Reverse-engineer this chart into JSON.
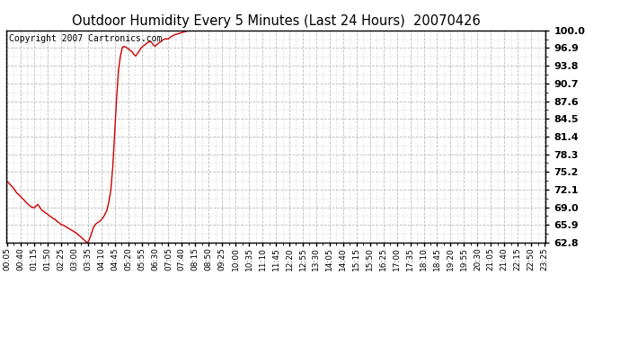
{
  "title": "Outdoor Humidity Every 5 Minutes (Last 24 Hours)  20070426",
  "copyright_text": "Copyright 2007 Cartronics.com",
  "line_color": "#cc0000",
  "bg_color": "#ffffff",
  "plot_bg_color": "#ffffff",
  "grid_color": "#bbbbbb",
  "ylim": [
    62.8,
    100.0
  ],
  "yticks": [
    62.8,
    65.9,
    69.0,
    72.1,
    75.2,
    78.3,
    81.4,
    84.5,
    87.6,
    90.7,
    93.8,
    96.9,
    100.0
  ],
  "x_labels": [
    "00:05",
    "00:40",
    "01:15",
    "01:50",
    "02:25",
    "03:00",
    "03:35",
    "04:10",
    "04:45",
    "05:20",
    "05:55",
    "06:30",
    "07:05",
    "07:40",
    "08:15",
    "08:50",
    "09:25",
    "10:00",
    "10:35",
    "11:10",
    "11:45",
    "12:20",
    "12:55",
    "13:30",
    "14:05",
    "14:40",
    "15:15",
    "15:50",
    "16:25",
    "17:00",
    "17:35",
    "18:10",
    "18:45",
    "19:20",
    "19:55",
    "20:30",
    "21:05",
    "21:40",
    "22:15",
    "22:50",
    "23:25"
  ],
  "humidity_values": [
    73.5,
    73.2,
    72.8,
    72.5,
    72.0,
    71.5,
    71.2,
    70.9,
    70.5,
    70.2,
    69.8,
    69.5,
    69.2,
    69.0,
    68.9,
    69.2,
    69.5,
    69.0,
    68.5,
    68.3,
    68.0,
    67.8,
    67.5,
    67.3,
    67.0,
    66.9,
    66.5,
    66.3,
    66.0,
    65.9,
    65.7,
    65.5,
    65.3,
    65.1,
    64.9,
    64.7,
    64.5,
    64.2,
    63.9,
    63.6,
    63.3,
    63.0,
    62.8,
    63.5,
    64.5,
    65.5,
    66.0,
    66.3,
    66.5,
    66.8,
    67.2,
    67.8,
    68.5,
    70.0,
    72.0,
    76.0,
    82.0,
    88.0,
    93.0,
    95.5,
    97.0,
    97.2,
    97.0,
    96.8,
    96.5,
    96.3,
    95.8,
    95.5,
    96.0,
    96.5,
    97.0,
    97.3,
    97.5,
    97.8,
    98.0,
    98.0,
    97.5,
    97.2,
    97.5,
    97.8,
    98.0,
    98.3,
    98.5,
    98.5,
    98.5,
    98.8,
    99.0,
    99.2,
    99.3,
    99.4,
    99.5,
    99.6,
    99.7,
    99.8,
    99.9,
    100.0,
    100.0,
    100.0,
    100.0,
    100.0,
    100.0,
    100.0,
    100.0,
    100.0,
    100.0,
    100.0,
    100.0,
    100.0,
    100.0,
    100.0,
    100.0,
    100.0,
    100.0,
    100.0,
    100.0,
    100.0,
    100.0,
    100.0,
    100.0,
    100.0,
    100.0,
    100.0,
    100.0,
    100.0,
    100.0,
    100.0,
    100.0,
    100.0,
    100.0,
    100.0,
    100.0,
    100.0,
    100.0,
    100.0,
    100.0,
    100.0,
    100.0,
    100.0,
    100.0,
    100.0,
    100.0,
    100.0,
    100.0,
    100.0,
    100.0,
    100.0,
    100.0,
    100.0,
    100.0,
    100.0,
    100.0,
    100.0,
    100.0,
    100.0,
    100.0,
    100.0,
    100.0,
    100.0,
    100.0,
    100.0,
    100.0,
    100.0,
    100.0,
    100.0,
    100.0,
    100.0,
    100.0,
    100.0,
    100.0,
    100.0,
    100.0,
    100.0,
    100.0,
    100.0,
    100.0,
    100.0,
    100.0,
    100.0,
    100.0,
    100.0,
    100.0,
    100.0,
    100.0,
    100.0,
    100.0,
    100.0,
    100.0,
    100.0,
    100.0,
    100.0,
    100.0,
    100.0,
    100.0,
    100.0,
    100.0,
    100.0,
    100.0,
    100.0,
    100.0,
    100.0,
    100.0,
    100.0,
    100.0,
    100.0,
    100.0,
    100.0,
    100.0,
    100.0,
    100.0,
    100.0,
    100.0,
    100.0,
    100.0,
    100.0,
    100.0,
    100.0,
    100.0,
    100.0,
    100.0,
    100.0,
    100.0,
    100.0,
    100.0,
    100.0,
    100.0,
    100.0,
    100.0,
    100.0,
    100.0,
    100.0,
    100.0,
    100.0,
    100.0,
    100.0,
    100.0,
    100.0,
    100.0,
    100.0,
    100.0,
    100.0,
    100.0,
    100.0,
    100.0,
    100.0,
    100.0,
    100.0,
    100.0,
    100.0,
    100.0,
    100.0,
    100.0,
    100.0,
    100.0,
    100.0,
    100.0,
    100.0,
    100.0,
    100.0,
    100.0,
    100.0,
    100.0,
    100.0,
    100.0,
    100.0,
    100.0,
    100.0,
    100.0,
    100.0,
    100.0,
    100.0,
    100.0,
    100.0,
    100.0,
    100.0,
    100.0,
    100.0,
    100.0,
    100.0,
    100.0,
    100.0,
    100.0
  ]
}
